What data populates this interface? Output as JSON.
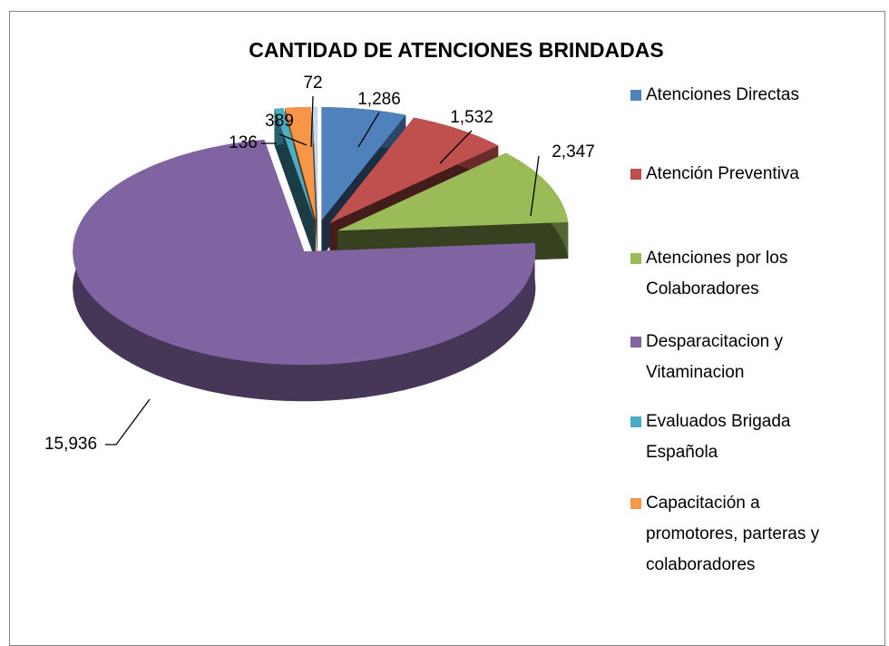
{
  "chart_data": {
    "type": "pie",
    "title": "CANTIDAD DE ATENCIONES BRINDADAS",
    "categories": [
      "Atenciones Directas",
      "Atención Preventiva",
      "Atenciones por los Colaboradores",
      "Desparacitacion y Vitaminacion",
      "Evaluados Brigada Española",
      "Capacitación a promotores, parteras y colaboradores",
      null
    ],
    "values": [
      1286,
      1532,
      2347,
      15936,
      136,
      389,
      72
    ],
    "value_labels": [
      "1,286",
      "1,532",
      "2,347",
      "15,936",
      "136",
      "389",
      "72"
    ],
    "colors": [
      "#4f81bd",
      "#c0504d",
      "#9bbb59",
      "#8064a2",
      "#4bacc6",
      "#f79646",
      "#c6d9f1"
    ],
    "legend": "right",
    "exploded": true,
    "three_d": true
  }
}
